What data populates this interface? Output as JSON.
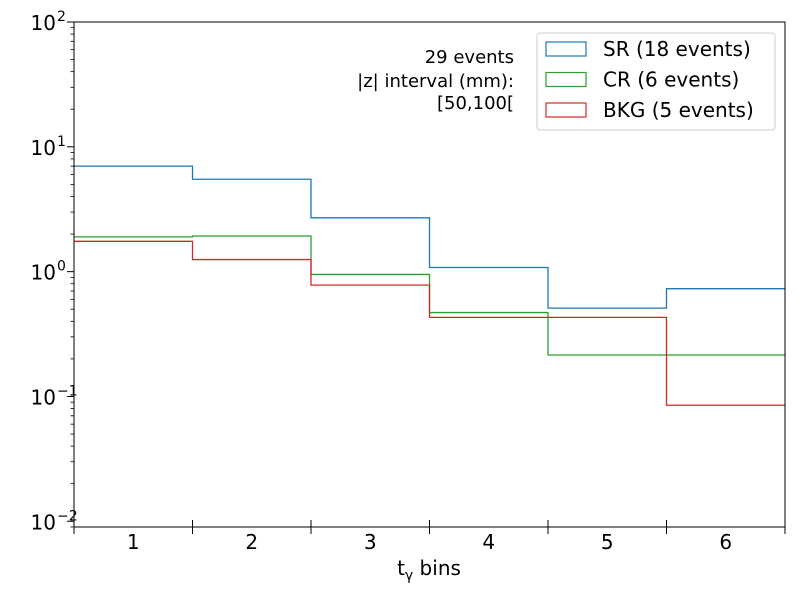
{
  "chart_data": {
    "type": "step",
    "xlabel_main": "t",
    "xlabel_sub": "γ",
    "xlabel_rest": " bins",
    "ylabel": "",
    "yscale": "log",
    "ylim": [
      0.009,
      100
    ],
    "xlim": [
      0.5,
      6.5
    ],
    "categories": [
      "1",
      "2",
      "3",
      "4",
      "5",
      "6"
    ],
    "y_ticks": [
      {
        "value": 0.01,
        "base": "10",
        "exp": "−2"
      },
      {
        "value": 0.1,
        "base": "10",
        "exp": "−1"
      },
      {
        "value": 1,
        "base": "10",
        "exp": "0"
      },
      {
        "value": 10,
        "base": "10",
        "exp": "1"
      },
      {
        "value": 100,
        "base": "10",
        "exp": "2"
      }
    ],
    "annotation": [
      "29 events",
      "|z| interval (mm):",
      "[50,100["
    ],
    "series": [
      {
        "name": "SR (18 events)",
        "color": "#1f77b4",
        "values": [
          7.0,
          5.5,
          2.7,
          1.08,
          0.51,
          0.73
        ]
      },
      {
        "name": "CR (6 events)",
        "color": "#2ca02c",
        "values": [
          1.9,
          1.93,
          0.95,
          0.47,
          0.215,
          0.215
        ]
      },
      {
        "name": "BKG (5 events)",
        "color": "#d62728",
        "values": [
          1.75,
          1.25,
          0.78,
          0.43,
          0.43,
          0.085
        ]
      }
    ]
  }
}
